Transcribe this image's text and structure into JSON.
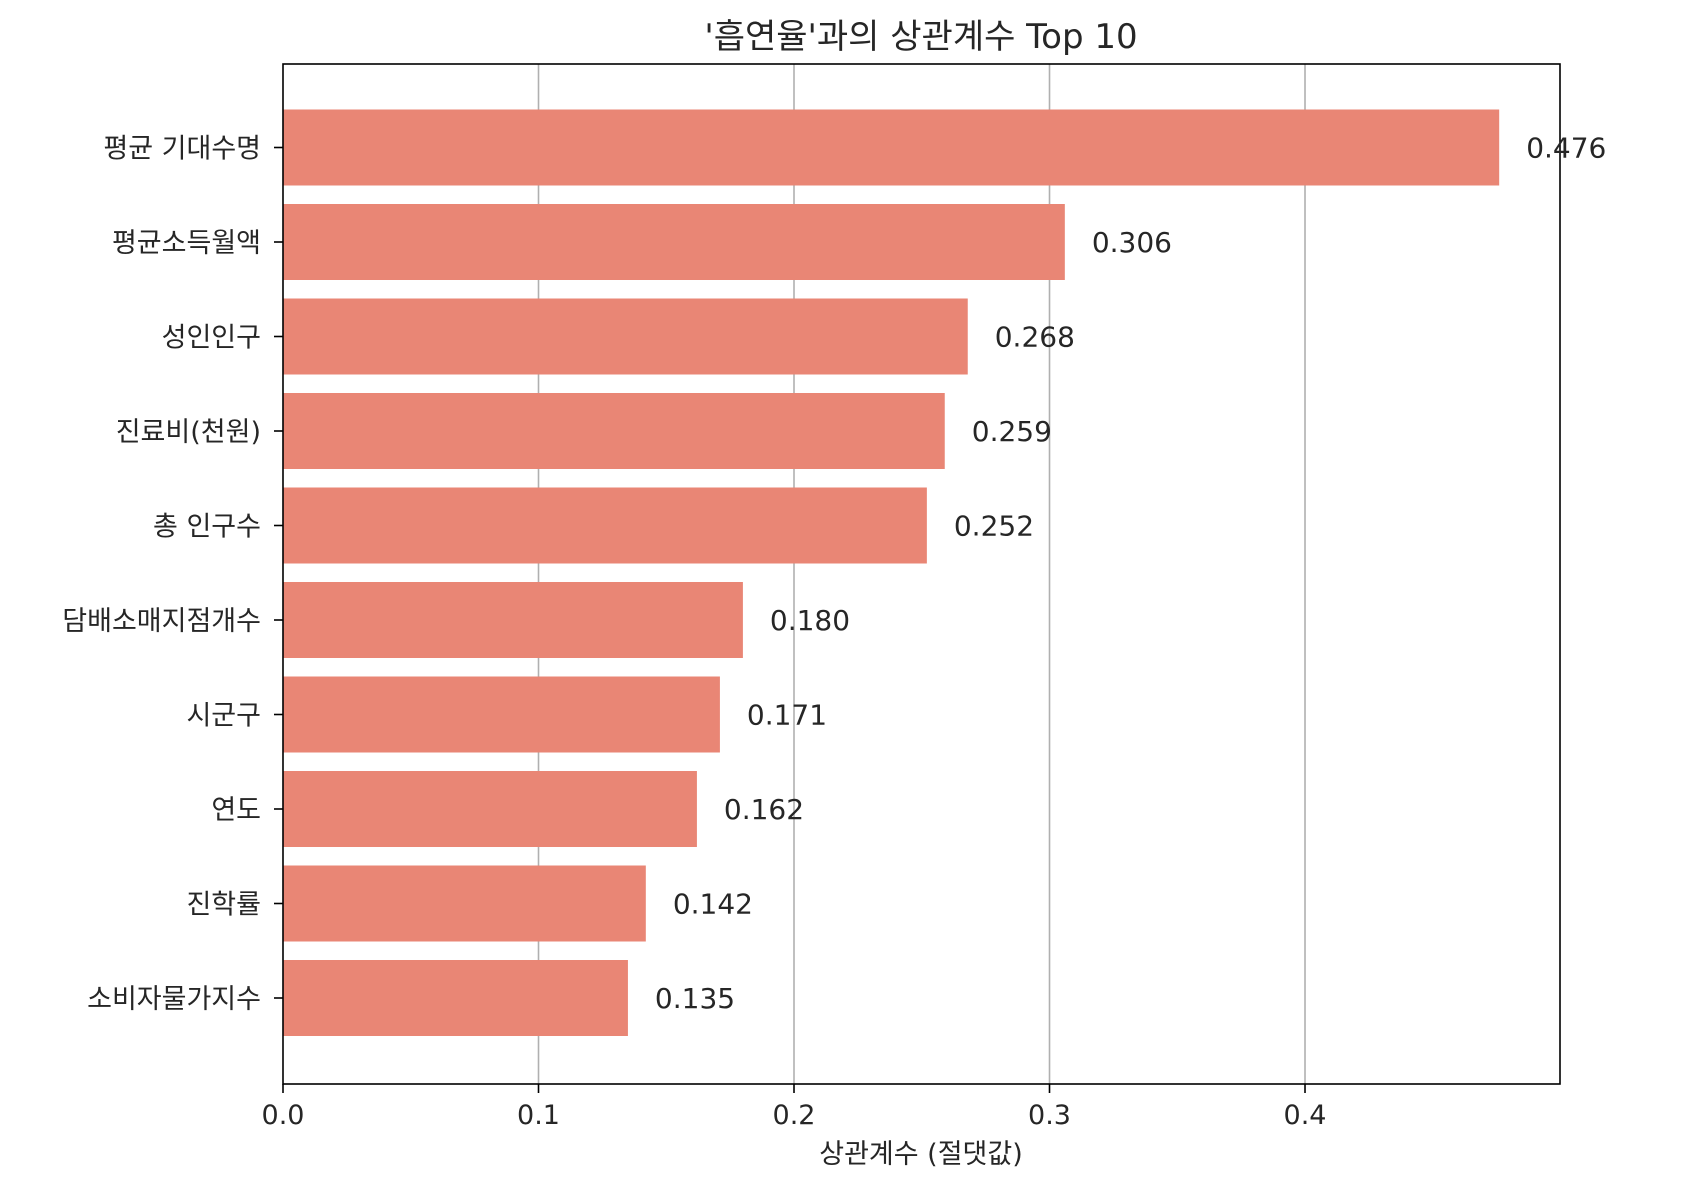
{
  "chart_data": {
    "type": "bar",
    "orientation": "horizontal",
    "title": "'흡연율'과의 상관계수 Top 10",
    "xlabel": "상관계수 (절댓값)",
    "ylabel": "",
    "xlim": [
      0,
      0.4998
    ],
    "xticks": [
      0.0,
      0.1,
      0.2,
      0.3,
      0.4
    ],
    "xtick_labels": [
      "0.0",
      "0.1",
      "0.2",
      "0.3",
      "0.4"
    ],
    "grid": "vertical",
    "categories": [
      "평균 기대수명",
      "평균소득월액",
      "성인인구",
      "진료비(천원)",
      "총 인구수",
      "담배소매지점개수",
      "시군구",
      "연도",
      "진학률",
      "소비자물가지수"
    ],
    "values": [
      0.476,
      0.306,
      0.268,
      0.259,
      0.252,
      0.18,
      0.171,
      0.162,
      0.142,
      0.135
    ],
    "value_labels": [
      "0.476",
      "0.306",
      "0.268",
      "0.259",
      "0.252",
      "0.180",
      "0.171",
      "0.162",
      "0.142",
      "0.135"
    ],
    "bar_color": "#e98675",
    "grid_color": "#b0b0b0"
  }
}
